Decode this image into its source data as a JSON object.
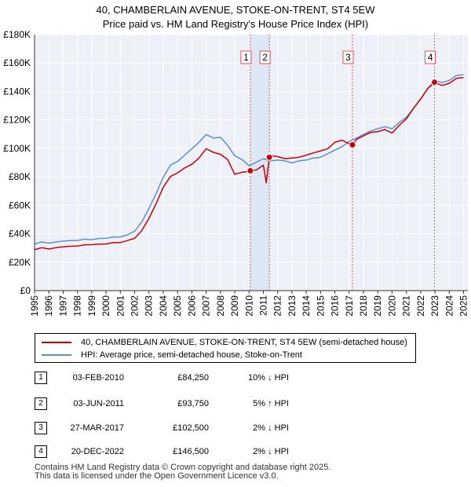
{
  "chart_title": {
    "line1": "40, CHAMBERLAIN AVENUE, STOKE-ON-TRENT, ST4 5EW",
    "line2": "Price paid vs. HM Land Registry's House Price Index (HPI)"
  },
  "chart_data": {
    "type": "line",
    "title": "40, CHAMBERLAIN AVENUE, STOKE-ON-TRENT, ST4 5EW — Price paid vs. HM Land Registry's House Price Index (HPI)",
    "xlabel": "",
    "ylabel": "",
    "xlim": [
      1995,
      2025.3
    ],
    "ylim": [
      0,
      180000
    ],
    "grid": true,
    "x_ticks": [
      1995,
      1996,
      1997,
      1998,
      1999,
      2000,
      2001,
      2002,
      2003,
      2004,
      2005,
      2006,
      2007,
      2008,
      2009,
      2010,
      2011,
      2012,
      2013,
      2014,
      2015,
      2016,
      2017,
      2018,
      2019,
      2020,
      2021,
      2022,
      2023,
      2024,
      2025
    ],
    "y_ticks": [
      {
        "value": 0,
        "label": "£0"
      },
      {
        "value": 20000,
        "label": "£20K"
      },
      {
        "value": 40000,
        "label": "£40K"
      },
      {
        "value": 60000,
        "label": "£60K"
      },
      {
        "value": 80000,
        "label": "£80K"
      },
      {
        "value": 100000,
        "label": "£100K"
      },
      {
        "value": 120000,
        "label": "£120K"
      },
      {
        "value": 140000,
        "label": "£140K"
      },
      {
        "value": 160000,
        "label": "£160K"
      },
      {
        "value": 180000,
        "label": "£180K"
      }
    ],
    "series": [
      {
        "name": "HPI: Average price, semi-detached house, Stoke-on-Trent",
        "color": "#5b8fd4",
        "x": [
          1995.0,
          1995.5,
          1996.0,
          1996.5,
          1997.0,
          1997.5,
          1998.0,
          1998.5,
          1999.0,
          1999.5,
          2000.0,
          2000.5,
          2001.0,
          2001.5,
          2002.0,
          2002.5,
          2003.0,
          2003.5,
          2004.0,
          2004.5,
          2005.0,
          2005.5,
          2006.0,
          2006.5,
          2007.0,
          2007.5,
          2008.0,
          2008.5,
          2009.0,
          2009.5,
          2010.0,
          2010.5,
          2011.0,
          2011.5,
          2012.0,
          2012.5,
          2013.0,
          2013.5,
          2014.0,
          2014.5,
          2015.0,
          2015.5,
          2016.0,
          2016.5,
          2017.0,
          2017.5,
          2018.0,
          2018.5,
          2019.0,
          2019.5,
          2020.0,
          2020.5,
          2021.0,
          2021.5,
          2022.0,
          2022.5,
          2023.0,
          2023.5,
          2024.0,
          2024.5,
          2025.0
        ],
        "values": [
          33000,
          34000,
          33500,
          34000,
          35000,
          35000,
          35500,
          36000,
          36000,
          36500,
          37000,
          37500,
          38000,
          39000,
          42000,
          48000,
          58000,
          68000,
          80000,
          88000,
          91000,
          95000,
          100000,
          104000,
          110000,
          107000,
          108000,
          102000,
          95000,
          92000,
          88000,
          90000,
          93000,
          91000,
          92000,
          91000,
          90000,
          91000,
          92000,
          93000,
          94000,
          96000,
          99000,
          101000,
          105000,
          107000,
          110000,
          112000,
          114000,
          115000,
          114000,
          118000,
          122000,
          128000,
          135000,
          142000,
          148000,
          146000,
          148000,
          151000,
          152000
        ]
      },
      {
        "name": "40, CHAMBERLAIN AVENUE, STOKE-ON-TRENT, ST4 5EW (semi-detached house)",
        "color": "#cc0000",
        "x": [
          1995.0,
          1995.5,
          1996.0,
          1996.5,
          1997.0,
          1997.5,
          1998.0,
          1998.5,
          1999.0,
          1999.5,
          2000.0,
          2000.5,
          2001.0,
          2001.5,
          2002.0,
          2002.5,
          2003.0,
          2003.5,
          2004.0,
          2004.5,
          2005.0,
          2005.5,
          2006.0,
          2006.5,
          2007.0,
          2007.5,
          2008.0,
          2008.5,
          2009.0,
          2009.5,
          2010.0,
          2010.09,
          2010.5,
          2011.0,
          2011.2,
          2011.42,
          2011.6,
          2012.0,
          2012.5,
          2013.0,
          2013.5,
          2014.0,
          2014.5,
          2015.0,
          2015.5,
          2016.0,
          2016.5,
          2017.0,
          2017.23,
          2017.5,
          2018.0,
          2018.5,
          2019.0,
          2019.5,
          2020.0,
          2020.5,
          2021.0,
          2021.5,
          2022.0,
          2022.5,
          2022.97,
          2023.5,
          2024.0,
          2024.5,
          2025.0
        ],
        "values": [
          29000,
          30000,
          29500,
          30000,
          31000,
          31000,
          31500,
          32000,
          32500,
          32500,
          33000,
          33500,
          34000,
          35000,
          37000,
          42000,
          51000,
          61000,
          73000,
          80000,
          83000,
          86000,
          89000,
          93000,
          100000,
          97000,
          96000,
          92000,
          82000,
          83000,
          84000,
          84250,
          85000,
          88000,
          76000,
          93750,
          95000,
          94000,
          93000,
          93000,
          94000,
          95000,
          97000,
          98000,
          100000,
          104000,
          106000,
          103000,
          102500,
          106000,
          109000,
          111000,
          112000,
          113000,
          111000,
          116000,
          121000,
          128000,
          135000,
          142000,
          146500,
          144000,
          146000,
          149000,
          150000
        ]
      }
    ],
    "sales": [
      {
        "label": "1",
        "x": 2010.09,
        "y": 84250
      },
      {
        "label": "2",
        "x": 2011.42,
        "y": 93750
      },
      {
        "label": "3",
        "x": 2017.23,
        "y": 102500
      },
      {
        "label": "4",
        "x": 2022.97,
        "y": 146500
      }
    ],
    "shaded_spans": [
      [
        2010.09,
        2011.42
      ]
    ],
    "legend_position": "bottom"
  },
  "legend": {
    "property_label": "40, CHAMBERLAIN AVENUE, STOKE-ON-TRENT, ST4 5EW (semi-detached house)",
    "hpi_label": "HPI: Average price, semi-detached house, Stoke-on-Trent",
    "property_color": "#cc0000",
    "hpi_color": "#5b8fd4"
  },
  "sales_table": [
    {
      "num": "1",
      "date": "03-FEB-2010",
      "price": "£84,250",
      "hpi": "10% ↓ HPI"
    },
    {
      "num": "2",
      "date": "03-JUN-2011",
      "price": "£93,750",
      "hpi": "5% ↑ HPI"
    },
    {
      "num": "3",
      "date": "27-MAR-2017",
      "price": "£102,500",
      "hpi": "2% ↓ HPI"
    },
    {
      "num": "4",
      "date": "20-DEC-2022",
      "price": "£146,500",
      "hpi": "2% ↓ HPI"
    }
  ],
  "footer": {
    "line1": "Contains HM Land Registry data © Crown copyright and database right 2025.",
    "line2": "This data is licensed under the Open Government Licence v3.0."
  }
}
